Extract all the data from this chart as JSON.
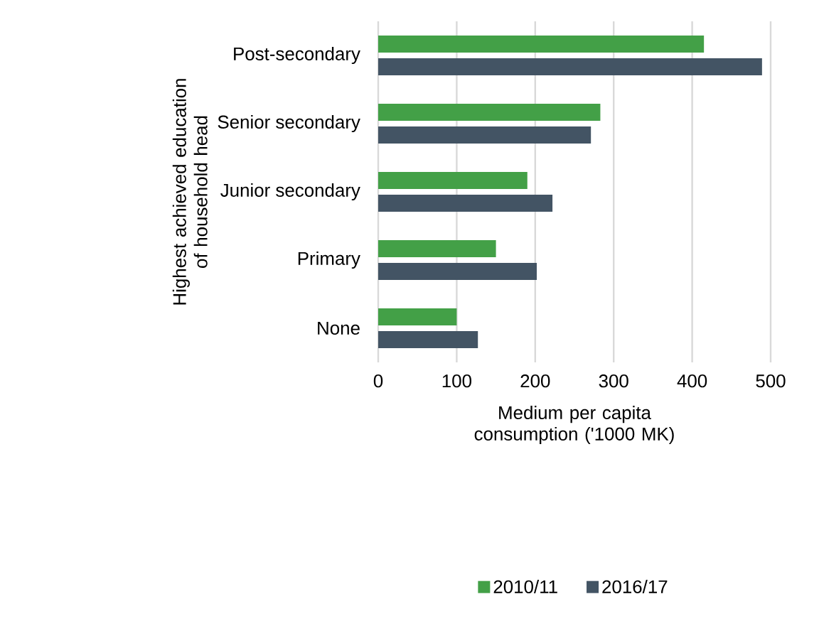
{
  "chart_data": {
    "type": "bar",
    "orientation": "horizontal",
    "xlabel": "Medium per capita consumption ('1000 MK)",
    "ylabel": "Highest achieved education of household head",
    "categories": [
      "Post-secondary",
      "Senior secondary",
      "Junior secondary",
      "Primary",
      "None"
    ],
    "series": [
      {
        "name": "2010/11",
        "color": "#43a047",
        "values": [
          415,
          283,
          190,
          150,
          100
        ]
      },
      {
        "name": "2016/17",
        "color": "#435464",
        "values": [
          489,
          271,
          222,
          202,
          127
        ]
      }
    ],
    "xlim": [
      0,
      500
    ],
    "xticks": [
      0,
      100,
      200,
      300,
      400,
      500
    ],
    "grid": "x",
    "legend": "bottom"
  }
}
